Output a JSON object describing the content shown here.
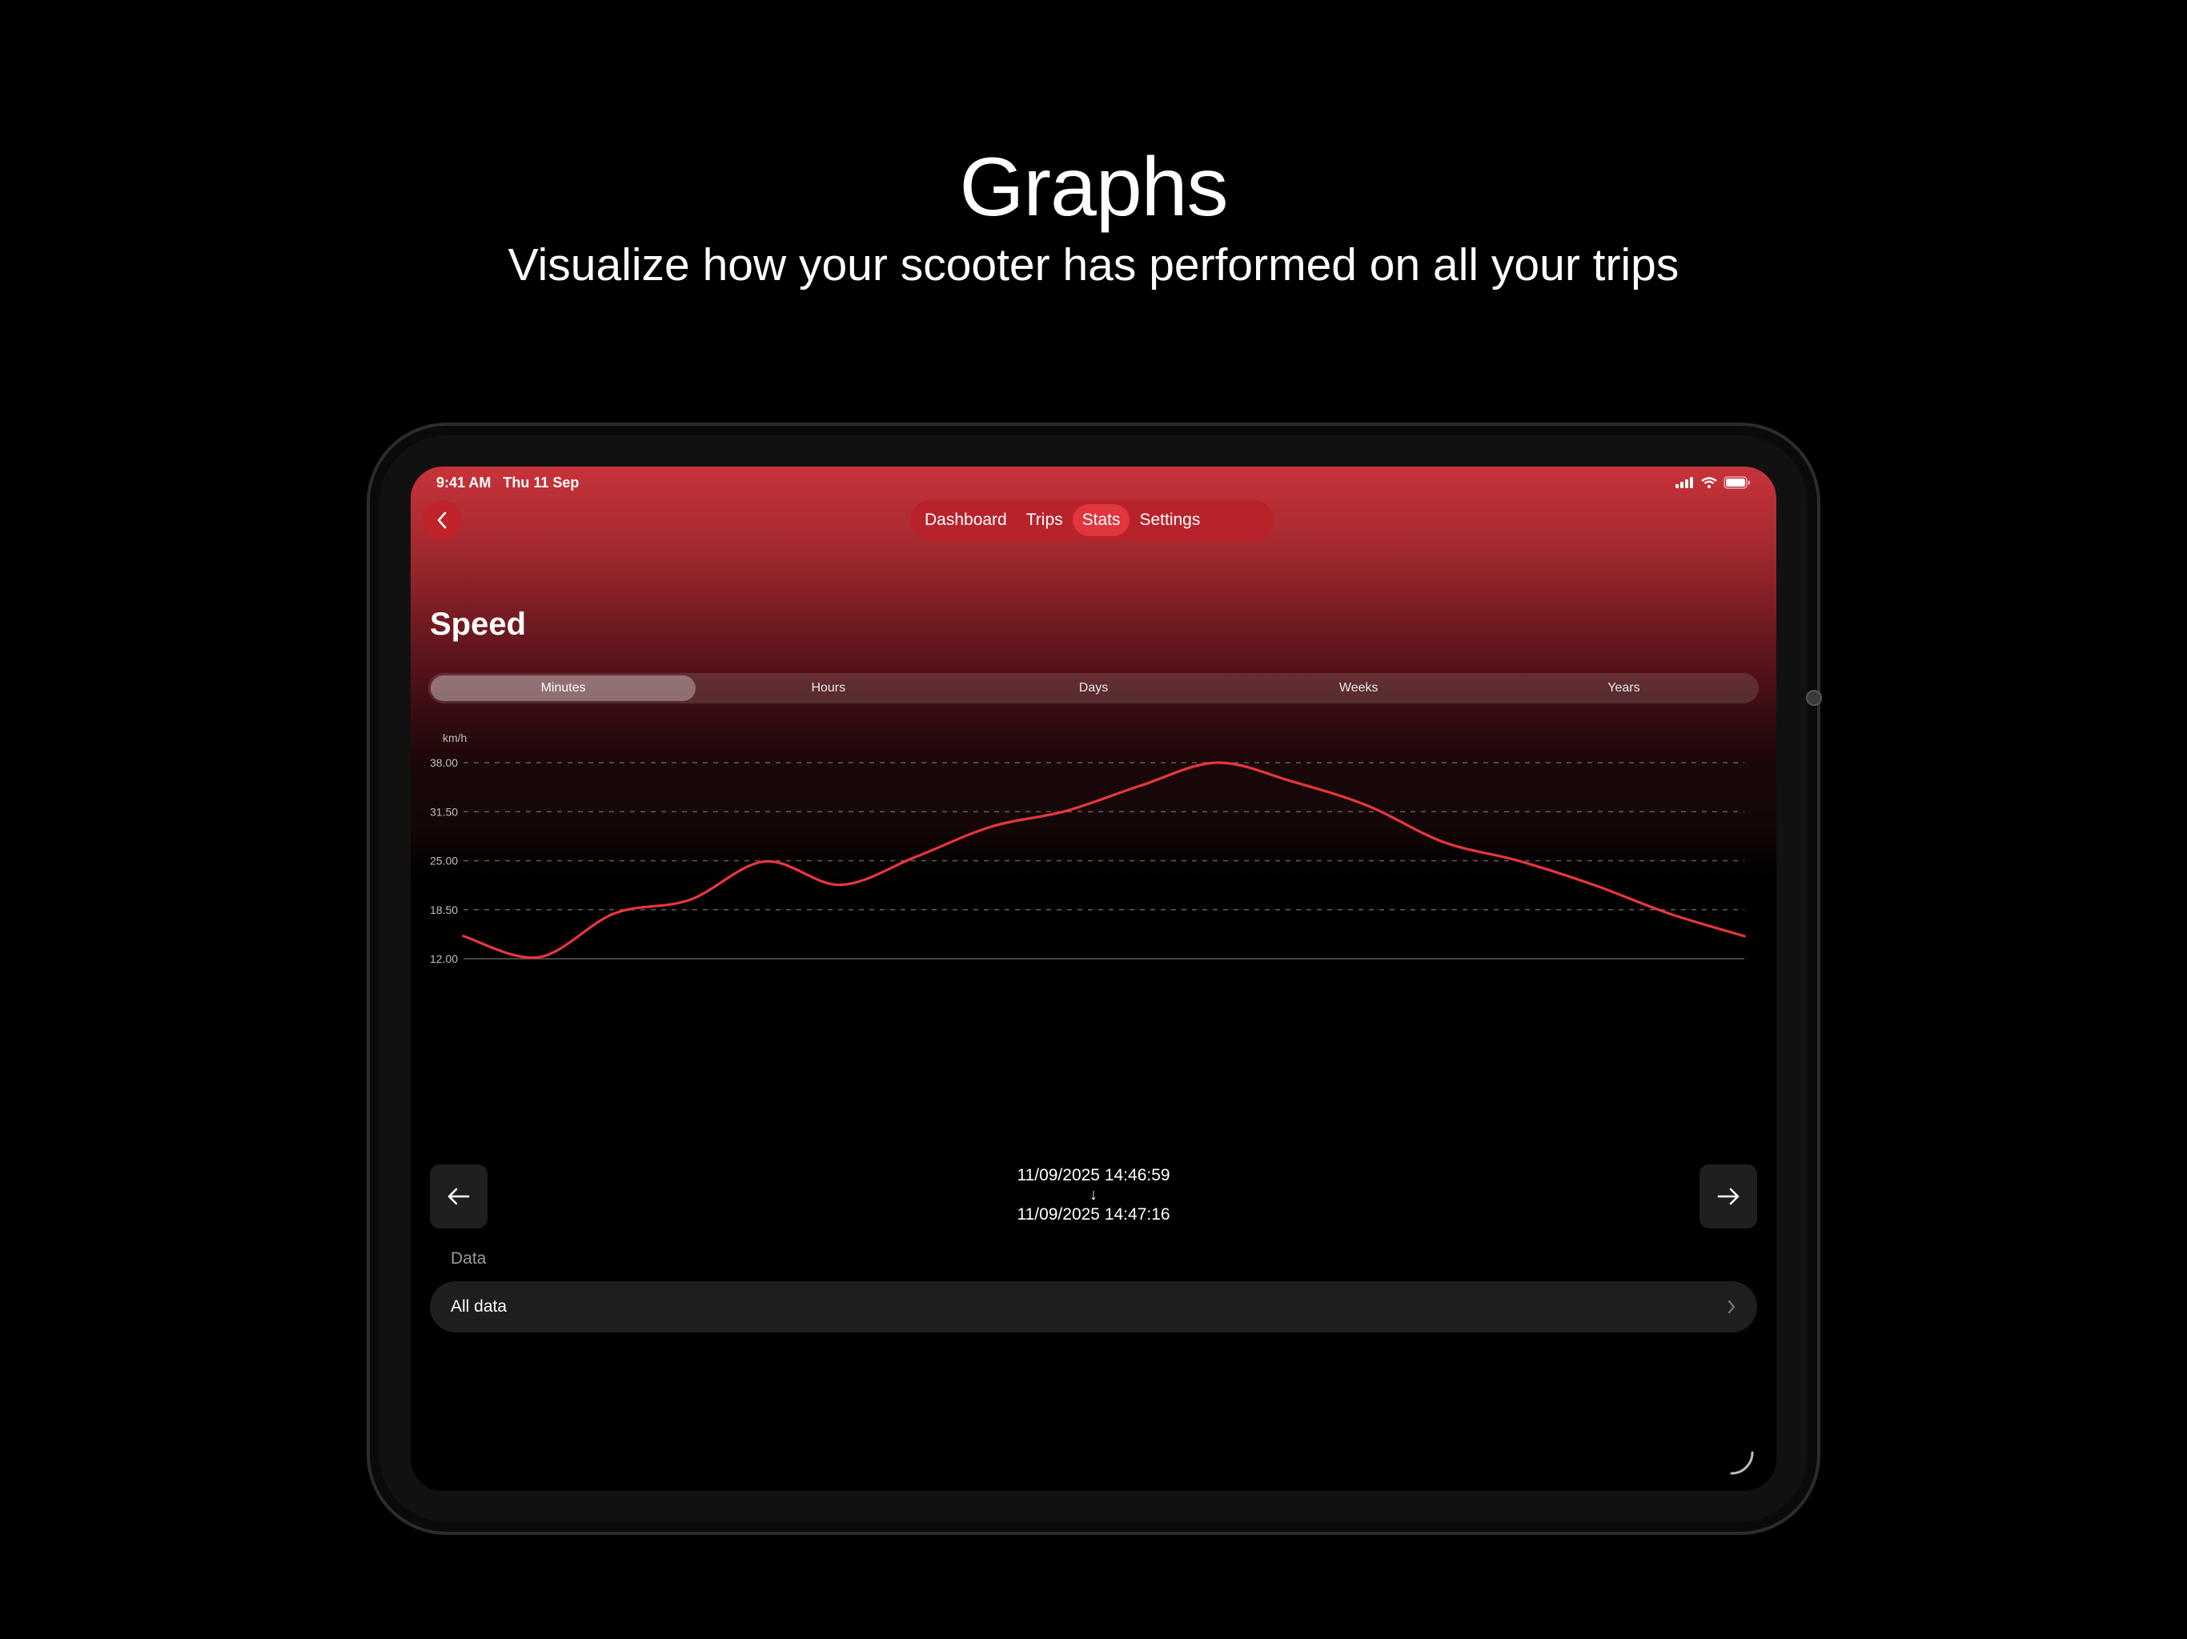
{
  "marketing": {
    "headline": "Graphs",
    "subheadline": "Visualize how your scooter has performed on all your trips"
  },
  "status_bar": {
    "time": "9:41 AM",
    "date": "Thu 11 Sep",
    "icons": [
      "cellular-signal-icon",
      "wifi-icon",
      "battery-icon"
    ]
  },
  "nav": {
    "back_icon": "chevron-left-icon",
    "tabs": [
      {
        "label": "Dashboard",
        "active": false
      },
      {
        "label": "Trips",
        "active": false
      },
      {
        "label": "Stats",
        "active": true
      },
      {
        "label": "Settings",
        "active": false
      }
    ]
  },
  "page": {
    "title": "Speed"
  },
  "segments": {
    "options": [
      "Minutes",
      "Hours",
      "Days",
      "Weeks",
      "Years"
    ],
    "selected": "Minutes"
  },
  "colors": {
    "accent": "#e0363e",
    "line": "#e8363f",
    "background": "#000000"
  },
  "chart_data": {
    "type": "line",
    "title": "",
    "ylabel": "km/h",
    "xlabel": "",
    "ylim": [
      12.0,
      38.0
    ],
    "yticks": [
      "38.00",
      "31.50",
      "25.00",
      "18.50",
      "12.00"
    ],
    "grid": true,
    "x": [
      0,
      1,
      2,
      3,
      4,
      5,
      6,
      7,
      8,
      9,
      10,
      11,
      12,
      13,
      14,
      15,
      16,
      17
    ],
    "series": [
      {
        "values": [
          15.0,
          12.2,
          18.0,
          19.8,
          24.9,
          21.8,
          25.5,
          29.5,
          31.6,
          35.0,
          38.0,
          35.5,
          32.3,
          27.5,
          25.0,
          21.8,
          18.0,
          15.0
        ]
      }
    ]
  },
  "range": {
    "start": "11/09/2025 14:46:59",
    "arrow": "↓",
    "end": "11/09/2025 14:47:16",
    "prev_icon": "arrow-left-icon",
    "next_icon": "arrow-right-icon"
  },
  "data_section": {
    "label": "Data",
    "row_label": "All data",
    "row_icon": "chevron-right-icon"
  }
}
